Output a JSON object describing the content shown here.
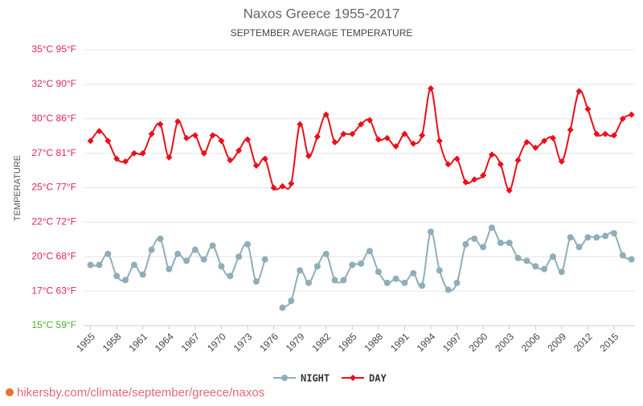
{
  "chart_data": {
    "type": "line",
    "title": "Naxos Greece 1955-2017",
    "subtitle": "SEPTEMBER AVERAGE TEMPERATURE",
    "y_label": "TEMPERATURE",
    "source": "hikersby.com/climate/september/greece/naxos",
    "x": [
      1955,
      1956,
      1957,
      1958,
      1959,
      1960,
      1961,
      1962,
      1963,
      1964,
      1965,
      1966,
      1967,
      1968,
      1969,
      1970,
      1971,
      1972,
      1973,
      1974,
      1975,
      1976,
      1977,
      1978,
      1979,
      1980,
      1981,
      1982,
      1983,
      1984,
      1985,
      1986,
      1987,
      1988,
      1989,
      1990,
      1991,
      1992,
      1993,
      1994,
      1995,
      1996,
      1997,
      1998,
      1999,
      2000,
      2001,
      2002,
      2003,
      2004,
      2005,
      2006,
      2007,
      2008,
      2009,
      2010,
      2011,
      2012,
      2013,
      2014,
      2015,
      2016,
      2017
    ],
    "xlim": [
      1954.3,
      2017.4
    ],
    "xticks": [
      1955,
      1958,
      1961,
      1964,
      1967,
      1970,
      1973,
      1976,
      1979,
      1982,
      1985,
      1988,
      1991,
      1994,
      1997,
      2000,
      2003,
      2006,
      2009,
      2012,
      2015
    ],
    "ylim": [
      15,
      35
    ],
    "yticks": [
      {
        "value": 15,
        "label": "15°C 59°F"
      },
      {
        "value": 17.5,
        "label": "17°C 63°F"
      },
      {
        "value": 20,
        "label": "20°C 68°F"
      },
      {
        "value": 22.5,
        "label": "22°C 72°F"
      },
      {
        "value": 25,
        "label": "25°C 77°F"
      },
      {
        "value": 27.5,
        "label": "27°C 81°F"
      },
      {
        "value": 30,
        "label": "30°C 86°F"
      },
      {
        "value": 32.5,
        "label": "32°C 90°F"
      },
      {
        "value": 35,
        "label": "35°C 95°F"
      }
    ],
    "grid": true,
    "series": [
      {
        "name": "NIGHT",
        "color": "#90aeb9",
        "marker": "circle",
        "values": [
          19.4,
          19.4,
          20.2,
          18.6,
          18.3,
          19.4,
          18.7,
          20.5,
          21.3,
          19.1,
          20.2,
          19.7,
          20.5,
          19.8,
          20.8,
          19.3,
          18.6,
          20.0,
          20.9,
          18.2,
          19.8,
          null,
          16.3,
          16.8,
          19.0,
          18.1,
          19.3,
          20.2,
          18.3,
          18.3,
          19.4,
          19.5,
          20.4,
          18.9,
          18.1,
          18.4,
          18.1,
          18.8,
          17.9,
          21.8,
          19.0,
          17.6,
          18.1,
          20.9,
          21.3,
          20.7,
          22.1,
          21.0,
          21.0,
          19.9,
          19.7,
          19.3,
          19.1,
          20.0,
          18.9,
          21.4,
          20.7,
          21.4,
          21.4,
          21.5,
          21.7,
          20.1,
          19.8
        ]
      },
      {
        "name": "DAY",
        "color": "#e8101a",
        "marker": "diamond",
        "values": [
          28.4,
          29.1,
          28.4,
          27.1,
          26.9,
          27.5,
          27.5,
          28.9,
          29.6,
          27.2,
          29.8,
          28.6,
          28.8,
          27.5,
          28.8,
          28.4,
          27.0,
          27.7,
          28.5,
          26.6,
          27.1,
          25.0,
          25.1,
          25.3,
          29.6,
          27.3,
          28.7,
          30.3,
          28.3,
          28.9,
          28.9,
          29.6,
          29.9,
          28.5,
          28.6,
          28.0,
          28.9,
          28.2,
          28.8,
          32.2,
          28.4,
          26.7,
          27.1,
          25.4,
          25.6,
          25.9,
          27.4,
          26.7,
          24.8,
          27.0,
          28.3,
          27.9,
          28.4,
          28.6,
          26.9,
          29.2,
          32.0,
          30.7,
          28.9,
          28.9,
          28.8,
          30.0,
          30.3
        ]
      }
    ]
  }
}
